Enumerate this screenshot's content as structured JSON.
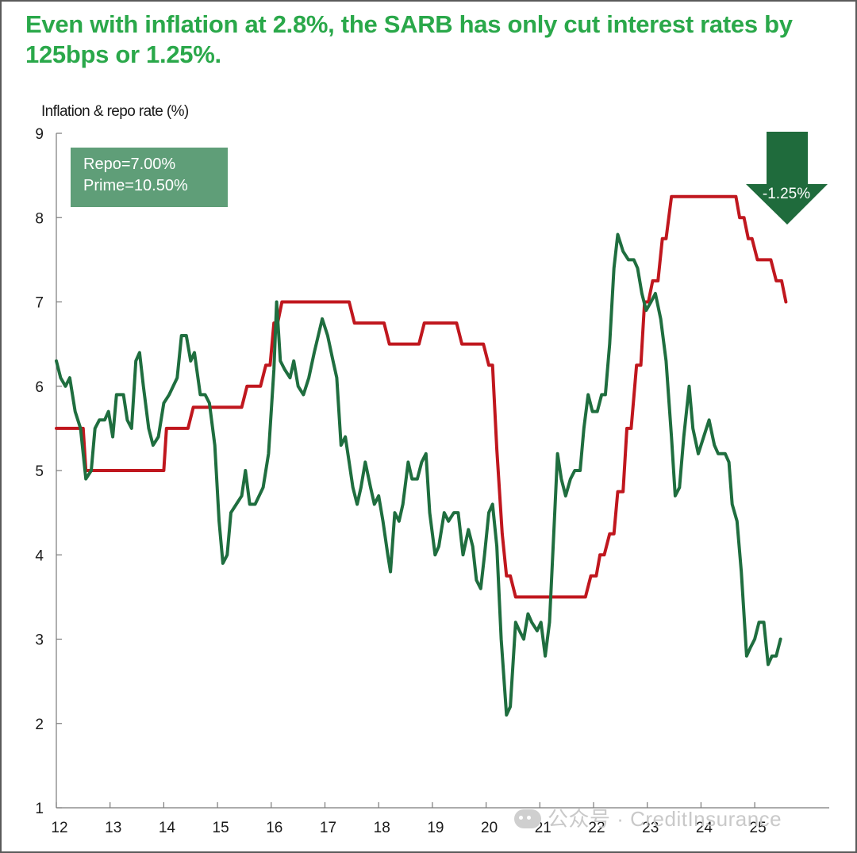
{
  "title": "Even with inflation at 2.8%, the SARB has only cut interest rates by 125bps or 1.25%.",
  "annotations": {
    "repo": "Repo=7.00%",
    "prime": "Prime=10.50%",
    "cut_label": "-1.25%"
  },
  "watermark": "公众号 · CreditInsurance",
  "colors": {
    "title": "#2aa84a",
    "inflation": "#1f6e3f",
    "repo": "#c0171e",
    "legend_bg": "#5f9e78",
    "arrow": "#1f6b3c"
  },
  "chart_data": {
    "type": "line",
    "ylabel": "Inflation & repo rate (%)",
    "xlabel": "",
    "ylim": [
      1,
      9
    ],
    "xlim": [
      2012,
      2025.9
    ],
    "yticks": [
      "1",
      "2",
      "3",
      "4",
      "5",
      "6",
      "7",
      "8",
      "9"
    ],
    "xticks": [
      "12",
      "13",
      "14",
      "15",
      "16",
      "17",
      "18",
      "19",
      "20",
      "21",
      "22",
      "23",
      "24",
      "25"
    ],
    "grid": false,
    "series": [
      {
        "key": "repo",
        "color": "#c0171e",
        "points": [
          [
            2012.0,
            5.5
          ],
          [
            2012.5,
            5.5
          ],
          [
            2012.55,
            5.0
          ],
          [
            2014.0,
            5.0
          ],
          [
            2014.05,
            5.5
          ],
          [
            2014.45,
            5.5
          ],
          [
            2014.55,
            5.75
          ],
          [
            2015.45,
            5.75
          ],
          [
            2015.55,
            6.0
          ],
          [
            2015.8,
            6.0
          ],
          [
            2015.9,
            6.25
          ],
          [
            2015.98,
            6.25
          ],
          [
            2016.05,
            6.75
          ],
          [
            2016.12,
            6.75
          ],
          [
            2016.2,
            7.0
          ],
          [
            2017.45,
            7.0
          ],
          [
            2017.55,
            6.75
          ],
          [
            2018.1,
            6.75
          ],
          [
            2018.2,
            6.5
          ],
          [
            2018.75,
            6.5
          ],
          [
            2018.85,
            6.75
          ],
          [
            2019.45,
            6.75
          ],
          [
            2019.55,
            6.5
          ],
          [
            2019.95,
            6.5
          ],
          [
            2020.05,
            6.25
          ],
          [
            2020.12,
            6.25
          ],
          [
            2020.2,
            5.25
          ],
          [
            2020.3,
            4.25
          ],
          [
            2020.38,
            3.75
          ],
          [
            2020.45,
            3.75
          ],
          [
            2020.55,
            3.5
          ],
          [
            2021.85,
            3.5
          ],
          [
            2021.95,
            3.75
          ],
          [
            2022.05,
            3.75
          ],
          [
            2022.12,
            4.0
          ],
          [
            2022.2,
            4.0
          ],
          [
            2022.3,
            4.25
          ],
          [
            2022.38,
            4.25
          ],
          [
            2022.45,
            4.75
          ],
          [
            2022.55,
            4.75
          ],
          [
            2022.62,
            5.5
          ],
          [
            2022.7,
            5.5
          ],
          [
            2022.8,
            6.25
          ],
          [
            2022.88,
            6.25
          ],
          [
            2022.95,
            7.0
          ],
          [
            2023.02,
            7.0
          ],
          [
            2023.1,
            7.25
          ],
          [
            2023.2,
            7.25
          ],
          [
            2023.28,
            7.75
          ],
          [
            2023.35,
            7.75
          ],
          [
            2023.45,
            8.25
          ],
          [
            2024.65,
            8.25
          ],
          [
            2024.72,
            8.0
          ],
          [
            2024.8,
            8.0
          ],
          [
            2024.88,
            7.75
          ],
          [
            2024.95,
            7.75
          ],
          [
            2025.05,
            7.5
          ],
          [
            2025.3,
            7.5
          ],
          [
            2025.4,
            7.25
          ],
          [
            2025.5,
            7.25
          ],
          [
            2025.58,
            7.0
          ]
        ]
      },
      {
        "key": "inflation",
        "color": "#1f6e3f",
        "points": [
          [
            2012.0,
            6.3
          ],
          [
            2012.08,
            6.1
          ],
          [
            2012.17,
            6.0
          ],
          [
            2012.25,
            6.1
          ],
          [
            2012.35,
            5.7
          ],
          [
            2012.45,
            5.5
          ],
          [
            2012.55,
            4.9
          ],
          [
            2012.65,
            5.0
          ],
          [
            2012.72,
            5.5
          ],
          [
            2012.8,
            5.6
          ],
          [
            2012.9,
            5.6
          ],
          [
            2012.97,
            5.7
          ],
          [
            2013.05,
            5.4
          ],
          [
            2013.12,
            5.9
          ],
          [
            2013.25,
            5.9
          ],
          [
            2013.32,
            5.6
          ],
          [
            2013.4,
            5.5
          ],
          [
            2013.48,
            6.3
          ],
          [
            2013.55,
            6.4
          ],
          [
            2013.62,
            6.0
          ],
          [
            2013.72,
            5.5
          ],
          [
            2013.8,
            5.3
          ],
          [
            2013.9,
            5.4
          ],
          [
            2014.0,
            5.8
          ],
          [
            2014.1,
            5.9
          ],
          [
            2014.25,
            6.1
          ],
          [
            2014.33,
            6.6
          ],
          [
            2014.42,
            6.6
          ],
          [
            2014.5,
            6.3
          ],
          [
            2014.57,
            6.4
          ],
          [
            2014.68,
            5.9
          ],
          [
            2014.77,
            5.9
          ],
          [
            2014.85,
            5.8
          ],
          [
            2014.95,
            5.3
          ],
          [
            2015.03,
            4.4
          ],
          [
            2015.1,
            3.9
          ],
          [
            2015.18,
            4.0
          ],
          [
            2015.25,
            4.5
          ],
          [
            2015.35,
            4.6
          ],
          [
            2015.45,
            4.7
          ],
          [
            2015.52,
            5.0
          ],
          [
            2015.6,
            4.6
          ],
          [
            2015.7,
            4.6
          ],
          [
            2015.85,
            4.8
          ],
          [
            2015.95,
            5.2
          ],
          [
            2016.05,
            6.2
          ],
          [
            2016.1,
            7.0
          ],
          [
            2016.17,
            6.3
          ],
          [
            2016.25,
            6.2
          ],
          [
            2016.35,
            6.1
          ],
          [
            2016.42,
            6.3
          ],
          [
            2016.5,
            6.0
          ],
          [
            2016.6,
            5.9
          ],
          [
            2016.7,
            6.1
          ],
          [
            2016.8,
            6.4
          ],
          [
            2016.95,
            6.8
          ],
          [
            2017.05,
            6.6
          ],
          [
            2017.15,
            6.3
          ],
          [
            2017.22,
            6.1
          ],
          [
            2017.3,
            5.3
          ],
          [
            2017.38,
            5.4
          ],
          [
            2017.45,
            5.1
          ],
          [
            2017.52,
            4.8
          ],
          [
            2017.6,
            4.6
          ],
          [
            2017.67,
            4.8
          ],
          [
            2017.75,
            5.1
          ],
          [
            2017.85,
            4.8
          ],
          [
            2017.92,
            4.6
          ],
          [
            2018.0,
            4.7
          ],
          [
            2018.08,
            4.4
          ],
          [
            2018.17,
            4.0
          ],
          [
            2018.22,
            3.8
          ],
          [
            2018.3,
            4.5
          ],
          [
            2018.38,
            4.4
          ],
          [
            2018.45,
            4.6
          ],
          [
            2018.55,
            5.1
          ],
          [
            2018.62,
            4.9
          ],
          [
            2018.72,
            4.9
          ],
          [
            2018.8,
            5.1
          ],
          [
            2018.88,
            5.2
          ],
          [
            2018.95,
            4.5
          ],
          [
            2019.05,
            4.0
          ],
          [
            2019.12,
            4.1
          ],
          [
            2019.22,
            4.5
          ],
          [
            2019.3,
            4.4
          ],
          [
            2019.4,
            4.5
          ],
          [
            2019.48,
            4.5
          ],
          [
            2019.57,
            4.0
          ],
          [
            2019.67,
            4.3
          ],
          [
            2019.75,
            4.1
          ],
          [
            2019.82,
            3.7
          ],
          [
            2019.9,
            3.6
          ],
          [
            2019.97,
            4.0
          ],
          [
            2020.05,
            4.5
          ],
          [
            2020.12,
            4.6
          ],
          [
            2020.2,
            4.1
          ],
          [
            2020.28,
            3.0
          ],
          [
            2020.38,
            2.1
          ],
          [
            2020.45,
            2.2
          ],
          [
            2020.55,
            3.2
          ],
          [
            2020.62,
            3.1
          ],
          [
            2020.7,
            3.0
          ],
          [
            2020.78,
            3.3
          ],
          [
            2020.85,
            3.2
          ],
          [
            2020.95,
            3.1
          ],
          [
            2021.02,
            3.2
          ],
          [
            2021.1,
            2.8
          ],
          [
            2021.18,
            3.2
          ],
          [
            2021.27,
            4.4
          ],
          [
            2021.33,
            5.2
          ],
          [
            2021.4,
            4.9
          ],
          [
            2021.48,
            4.7
          ],
          [
            2021.57,
            4.9
          ],
          [
            2021.65,
            5.0
          ],
          [
            2021.75,
            5.0
          ],
          [
            2021.82,
            5.5
          ],
          [
            2021.9,
            5.9
          ],
          [
            2021.98,
            5.7
          ],
          [
            2022.07,
            5.7
          ],
          [
            2022.15,
            5.9
          ],
          [
            2022.22,
            5.9
          ],
          [
            2022.3,
            6.5
          ],
          [
            2022.38,
            7.4
          ],
          [
            2022.45,
            7.8
          ],
          [
            2022.55,
            7.6
          ],
          [
            2022.65,
            7.5
          ],
          [
            2022.75,
            7.5
          ],
          [
            2022.82,
            7.4
          ],
          [
            2022.9,
            7.1
          ],
          [
            2022.98,
            6.9
          ],
          [
            2023.07,
            7.0
          ],
          [
            2023.15,
            7.1
          ],
          [
            2023.25,
            6.8
          ],
          [
            2023.35,
            6.3
          ],
          [
            2023.45,
            5.4
          ],
          [
            2023.52,
            4.7
          ],
          [
            2023.6,
            4.8
          ],
          [
            2023.68,
            5.4
          ],
          [
            2023.78,
            6.0
          ],
          [
            2023.85,
            5.5
          ],
          [
            2023.95,
            5.2
          ],
          [
            2024.05,
            5.4
          ],
          [
            2024.15,
            5.6
          ],
          [
            2024.25,
            5.3
          ],
          [
            2024.32,
            5.2
          ],
          [
            2024.45,
            5.2
          ],
          [
            2024.52,
            5.1
          ],
          [
            2024.58,
            4.6
          ],
          [
            2024.67,
            4.4
          ],
          [
            2024.75,
            3.8
          ],
          [
            2024.85,
            2.8
          ],
          [
            2024.92,
            2.9
          ],
          [
            2025.0,
            3.0
          ],
          [
            2025.08,
            3.2
          ],
          [
            2025.17,
            3.2
          ],
          [
            2025.25,
            2.7
          ],
          [
            2025.32,
            2.8
          ],
          [
            2025.4,
            2.8
          ],
          [
            2025.48,
            3.0
          ]
        ]
      }
    ],
    "annotations": [
      "Repo=7.00%",
      "Prime=10.50%",
      "-1.25%"
    ]
  }
}
